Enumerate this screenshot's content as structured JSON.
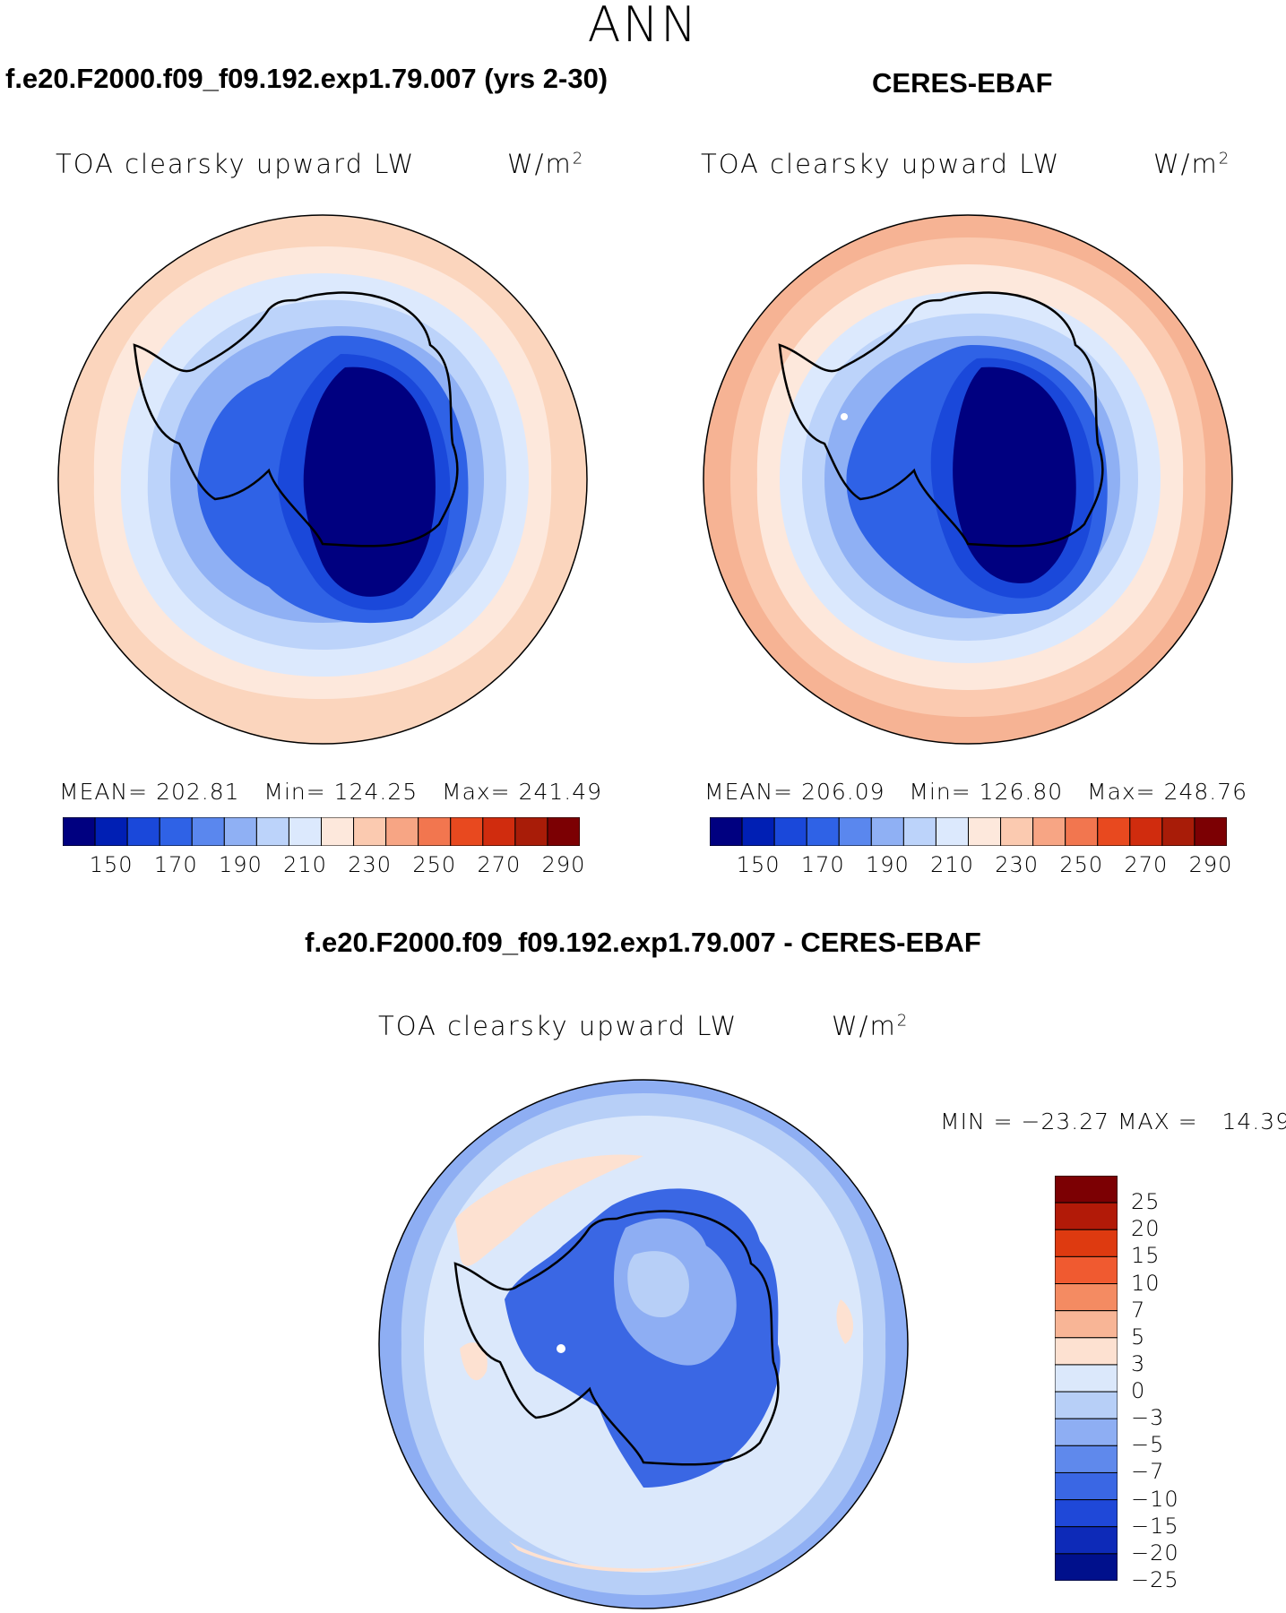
{
  "figure": {
    "season": "ANN"
  },
  "panels": [
    {
      "case_title": "f.e20.F2000.f09_f09.192.exp1.79.007 (yrs 2-30)",
      "variable": "TOA clearsky upward LW",
      "units_base": "W/m",
      "units_exp": "2",
      "stats": {
        "mean_label": "MEAN=",
        "mean": "202.81",
        "min_label": "Min=",
        "min": "124.25",
        "max_label": "Max=",
        "max": "241.49"
      }
    },
    {
      "case_title": "CERES-EBAF",
      "variable": "TOA clearsky upward LW",
      "units_base": "W/m",
      "units_exp": "2",
      "stats": {
        "mean_label": "MEAN=",
        "mean": "206.09",
        "min_label": "Min=",
        "min": "126.80",
        "max_label": "Max=",
        "max": "248.76"
      }
    },
    {
      "case_title": "f.e20.F2000.f09_f09.192.exp1.79.007 - CERES-EBAF",
      "variable": "TOA clearsky upward LW",
      "units_base": "W/m",
      "units_exp": "2",
      "stats": {
        "min_label": "MIN =",
        "min": "−23.27",
        "max_label": "MAX =",
        "max": "14.39"
      }
    }
  ],
  "colorbars": {
    "absolute": {
      "colors": [
        "#000080",
        "#001fb4",
        "#1a48da",
        "#2f62e6",
        "#5a87ee",
        "#8fb0f4",
        "#bcd3fa",
        "#dce9fd",
        "#fde8dc",
        "#fbcab0",
        "#f7a584",
        "#f2764f",
        "#e8491f",
        "#d02c0e",
        "#a81c08",
        "#7c0003"
      ],
      "labels": [
        "150",
        "170",
        "190",
        "210",
        "230",
        "250",
        "270",
        "290"
      ]
    },
    "difference": {
      "colors": [
        "#7c0003",
        "#b21a08",
        "#de3a10",
        "#f05a30",
        "#f48b62",
        "#f8b596",
        "#fde1d1",
        "#dbe8fb",
        "#b7cff7",
        "#8eaef3",
        "#5f89ec",
        "#3a67e4",
        "#1f48d8",
        "#0d2ab8",
        "#00108c"
      ],
      "labels": [
        "25",
        "20",
        "15",
        "10",
        "7",
        "5",
        "3",
        "0",
        "−3",
        "−5",
        "−7",
        "−10",
        "−15",
        "−20",
        "−25"
      ]
    }
  },
  "map_colors": {
    "coast": "#000000",
    "ocean_outer_model": "#fbd5bd",
    "ocean_outer_obs": "#f6b394",
    "ocean_diff": "#dbe8fb"
  }
}
